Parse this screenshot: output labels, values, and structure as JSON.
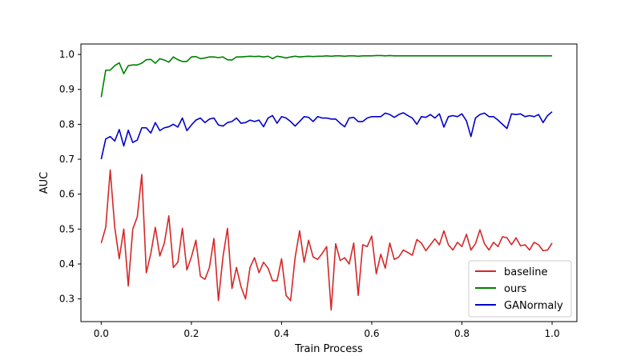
{
  "chart_data": {
    "type": "line",
    "xlabel": "Train Process",
    "ylabel": "AUC",
    "xlim": [
      -0.045,
      1.055
    ],
    "ylim": [
      0.235,
      1.03
    ],
    "xticks": [
      0.0,
      0.2,
      0.4,
      0.6,
      0.8,
      1.0
    ],
    "xtick_labels": [
      "0.0",
      "0.2",
      "0.4",
      "0.6",
      "0.8",
      "1.0"
    ],
    "yticks": [
      0.3,
      0.4,
      0.5,
      0.6,
      0.7,
      0.8,
      0.9,
      1.0
    ],
    "ytick_labels": [
      "0.3",
      "0.4",
      "0.5",
      "0.6",
      "0.7",
      "0.8",
      "0.9",
      "1.0"
    ],
    "grid": false,
    "legend_position": "lower-right",
    "x": [
      0,
      0.01,
      0.02,
      0.03,
      0.04,
      0.05,
      0.06,
      0.07,
      0.08,
      0.09,
      0.1,
      0.11,
      0.12,
      0.13,
      0.14,
      0.15,
      0.16,
      0.17,
      0.18,
      0.19,
      0.2,
      0.21,
      0.22,
      0.23,
      0.24,
      0.25,
      0.26,
      0.27,
      0.28,
      0.29,
      0.3,
      0.31,
      0.32,
      0.33,
      0.34,
      0.35,
      0.36,
      0.37,
      0.38,
      0.39,
      0.4,
      0.41,
      0.42,
      0.43,
      0.44,
      0.45,
      0.46,
      0.47,
      0.48,
      0.49,
      0.5,
      0.51,
      0.52,
      0.53,
      0.54,
      0.55,
      0.56,
      0.57,
      0.58,
      0.59,
      0.6,
      0.61,
      0.62,
      0.63,
      0.64,
      0.65,
      0.66,
      0.67,
      0.68,
      0.69,
      0.7,
      0.71,
      0.72,
      0.73,
      0.74,
      0.75,
      0.76,
      0.77,
      0.78,
      0.79,
      0.8,
      0.81,
      0.82,
      0.83,
      0.84,
      0.85,
      0.86,
      0.87,
      0.88,
      0.89,
      0.9,
      0.91,
      0.92,
      0.93,
      0.94,
      0.95,
      0.96,
      0.97,
      0.98,
      0.99,
      1.0
    ],
    "series": [
      {
        "name": "baseline",
        "color": "#d62728",
        "values": [
          0.46,
          0.505,
          0.669,
          0.505,
          0.415,
          0.5,
          0.337,
          0.5,
          0.535,
          0.656,
          0.375,
          0.43,
          0.505,
          0.423,
          0.46,
          0.538,
          0.39,
          0.405,
          0.502,
          0.383,
          0.42,
          0.468,
          0.365,
          0.356,
          0.39,
          0.473,
          0.295,
          0.42,
          0.502,
          0.33,
          0.39,
          0.335,
          0.3,
          0.39,
          0.418,
          0.375,
          0.405,
          0.388,
          0.352,
          0.352,
          0.415,
          0.31,
          0.295,
          0.418,
          0.495,
          0.405,
          0.468,
          0.42,
          0.413,
          0.43,
          0.45,
          0.268,
          0.458,
          0.41,
          0.418,
          0.4,
          0.46,
          0.31,
          0.455,
          0.45,
          0.48,
          0.372,
          0.428,
          0.388,
          0.46,
          0.413,
          0.42,
          0.44,
          0.433,
          0.425,
          0.47,
          0.46,
          0.438,
          0.455,
          0.472,
          0.455,
          0.495,
          0.455,
          0.44,
          0.462,
          0.45,
          0.485,
          0.44,
          0.458,
          0.498,
          0.458,
          0.44,
          0.462,
          0.45,
          0.478,
          0.475,
          0.455,
          0.475,
          0.452,
          0.455,
          0.44,
          0.462,
          0.455,
          0.438,
          0.44,
          0.46
        ]
      },
      {
        "name": "ours",
        "color": "#008000",
        "values": [
          0.878,
          0.955,
          0.955,
          0.968,
          0.976,
          0.945,
          0.968,
          0.97,
          0.97,
          0.975,
          0.985,
          0.986,
          0.975,
          0.988,
          0.984,
          0.978,
          0.993,
          0.985,
          0.98,
          0.98,
          0.993,
          0.994,
          0.988,
          0.99,
          0.993,
          0.993,
          0.991,
          0.993,
          0.985,
          0.984,
          0.993,
          0.993,
          0.994,
          0.995,
          0.994,
          0.995,
          0.993,
          0.995,
          0.988,
          0.995,
          0.993,
          0.99,
          0.993,
          0.995,
          0.993,
          0.994,
          0.995,
          0.994,
          0.995,
          0.995,
          0.996,
          0.995,
          0.996,
          0.996,
          0.995,
          0.996,
          0.996,
          0.995,
          0.996,
          0.996,
          0.996,
          0.997,
          0.997,
          0.996,
          0.997,
          0.996,
          0.996,
          0.996,
          0.996,
          0.996,
          0.996,
          0.996,
          0.996,
          0.996,
          0.996,
          0.996,
          0.996,
          0.996,
          0.996,
          0.996,
          0.996,
          0.996,
          0.996,
          0.996,
          0.996,
          0.996,
          0.996,
          0.996,
          0.996,
          0.996,
          0.996,
          0.996,
          0.996,
          0.996,
          0.996,
          0.996,
          0.996,
          0.996,
          0.996,
          0.996,
          0.996
        ]
      },
      {
        "name": "GANormaly",
        "color": "#0000cc",
        "values": [
          0.7,
          0.758,
          0.765,
          0.752,
          0.785,
          0.738,
          0.783,
          0.748,
          0.755,
          0.79,
          0.79,
          0.775,
          0.805,
          0.782,
          0.79,
          0.793,
          0.8,
          0.792,
          0.818,
          0.782,
          0.798,
          0.812,
          0.818,
          0.805,
          0.815,
          0.818,
          0.798,
          0.795,
          0.805,
          0.808,
          0.818,
          0.803,
          0.805,
          0.812,
          0.808,
          0.812,
          0.793,
          0.818,
          0.825,
          0.803,
          0.822,
          0.818,
          0.808,
          0.795,
          0.808,
          0.822,
          0.82,
          0.808,
          0.822,
          0.818,
          0.818,
          0.815,
          0.815,
          0.803,
          0.793,
          0.818,
          0.82,
          0.808,
          0.808,
          0.818,
          0.822,
          0.822,
          0.822,
          0.832,
          0.828,
          0.82,
          0.828,
          0.833,
          0.825,
          0.818,
          0.8,
          0.822,
          0.82,
          0.828,
          0.818,
          0.83,
          0.792,
          0.822,
          0.825,
          0.822,
          0.83,
          0.81,
          0.765,
          0.818,
          0.828,
          0.832,
          0.822,
          0.822,
          0.812,
          0.8,
          0.788,
          0.83,
          0.828,
          0.83,
          0.822,
          0.825,
          0.822,
          0.828,
          0.805,
          0.825,
          0.836
        ]
      }
    ]
  }
}
